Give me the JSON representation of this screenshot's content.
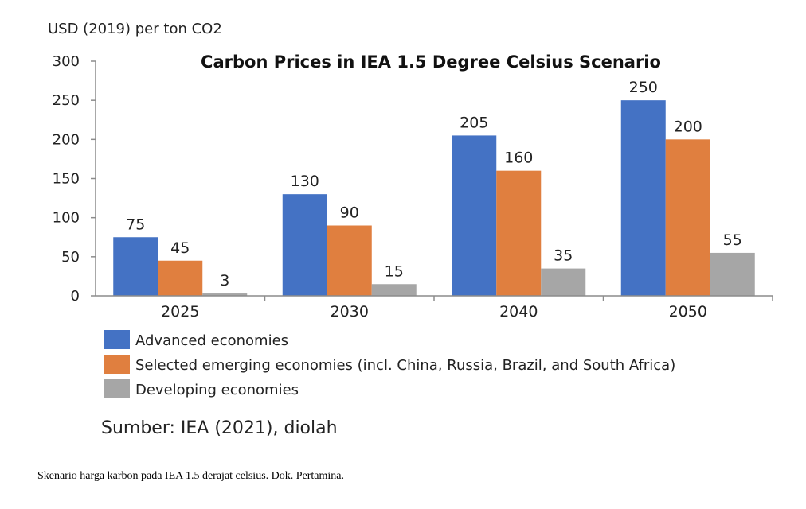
{
  "chart_data": {
    "type": "bar",
    "title": "Carbon Prices in IEA 1.5 Degree Celsius Scenario",
    "ylabel": "USD (2019) per ton CO2",
    "xlabel": "",
    "ylim": [
      0,
      300
    ],
    "yticks": [
      0,
      50,
      100,
      150,
      200,
      250,
      300
    ],
    "categories": [
      "2025",
      "2030",
      "2040",
      "2050"
    ],
    "series": [
      {
        "name": "Advanced economies",
        "color": "#4472c4",
        "values": [
          75,
          130,
          205,
          250
        ]
      },
      {
        "name": "Selected emerging economies (incl. China, Russia, Brazil, and South Africa)",
        "color": "#e07f3f",
        "values": [
          45,
          90,
          160,
          200
        ]
      },
      {
        "name": "Developing economies",
        "color": "#a6a6a6",
        "values": [
          3,
          15,
          35,
          55
        ]
      }
    ],
    "legend_position": "bottom-left",
    "grid": false
  },
  "source_note": "Sumber: IEA (2021), diolah",
  "caption": "Skenario harga karbon pada IEA 1.5 derajat celsius. Dok. Pertamina."
}
